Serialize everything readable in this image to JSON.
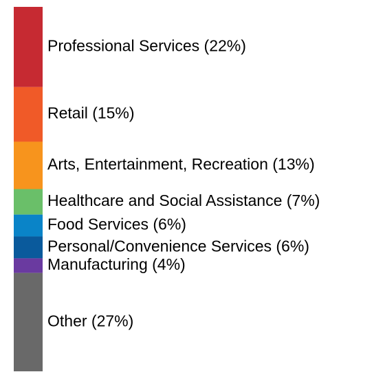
{
  "chart_data": {
    "type": "bar",
    "orientation": "stacked-vertical",
    "unit": "%",
    "segments": [
      {
        "label": "Professional Services (22%)",
        "value": 22,
        "color": "#c62a32"
      },
      {
        "label": "Retail (15%)",
        "value": 15,
        "color": "#f05a28"
      },
      {
        "label": "Arts, Entertainment, Recreation (13%)",
        "value": 13,
        "color": "#f7941d"
      },
      {
        "label": "Healthcare and Social Assistance (7%)",
        "value": 7,
        "color": "#6abf69"
      },
      {
        "label": "Food Services (6%)",
        "value": 6,
        "color": "#0a84c8"
      },
      {
        "label": "Personal/Convenience Services (6%)",
        "value": 6,
        "color": "#0a5a9c"
      },
      {
        "label": "Manufacturing (4%)",
        "value": 4,
        "color": "#6a3aa0"
      },
      {
        "label": "Other (27%)",
        "value": 27,
        "color": "#696969"
      }
    ]
  }
}
